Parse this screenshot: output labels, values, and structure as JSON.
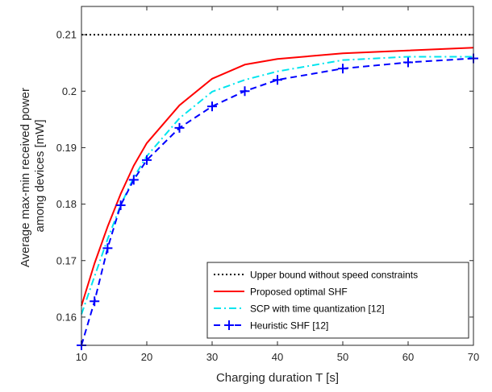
{
  "chart_data": {
    "type": "line",
    "title": "",
    "xlabel": "Charging duration T [s]",
    "ylabel_lines": [
      "Average max-min received power",
      "among devices [mW]"
    ],
    "xlim": [
      10,
      70
    ],
    "ylim": [
      0.155,
      0.215
    ],
    "xticks": [
      10,
      20,
      30,
      40,
      50,
      60,
      70
    ],
    "yticks": [
      0.16,
      0.17,
      0.18,
      0.19,
      0.2,
      0.21
    ],
    "xtick_labels": [
      "10",
      "20",
      "30",
      "40",
      "50",
      "60",
      "70"
    ],
    "ytick_labels": [
      "0.16",
      "0.17",
      "0.18",
      "0.19",
      "0.2",
      "0.21"
    ],
    "grid": false,
    "legend_position": "bottom-right",
    "series": [
      {
        "name": "Upper bound without speed constraints",
        "color": "#000000",
        "style": "dotted",
        "marker": "none",
        "x": [
          10,
          70
        ],
        "y": [
          0.21,
          0.21
        ]
      },
      {
        "name": "Proposed optimal SHF",
        "color": "#ff0000",
        "style": "solid",
        "marker": "none",
        "x": [
          10,
          12,
          14,
          16,
          18,
          20,
          25,
          30,
          35,
          40,
          50,
          60,
          70
        ],
        "y": [
          0.162,
          0.1695,
          0.176,
          0.1818,
          0.1868,
          0.1908,
          0.1975,
          0.2022,
          0.2047,
          0.2057,
          0.2067,
          0.2072,
          0.2077
        ]
      },
      {
        "name": "SCP with time quantization [12]",
        "color": "#00e5ee",
        "style": "dashdot",
        "marker": "none",
        "x": [
          10,
          12,
          14,
          16,
          18,
          20,
          25,
          30,
          35,
          40,
          50,
          60,
          70
        ],
        "y": [
          0.1605,
          0.1672,
          0.1738,
          0.1798,
          0.1847,
          0.1885,
          0.1952,
          0.1999,
          0.202,
          0.2035,
          0.2055,
          0.2061,
          0.2061
        ]
      },
      {
        "name": "Heuristic SHF [12]",
        "color": "#0000ff",
        "style": "dashed",
        "marker": "plus",
        "x": [
          10,
          12,
          14,
          16,
          18,
          20,
          25,
          30,
          35,
          40,
          50,
          60,
          70
        ],
        "y": [
          0.155,
          0.1628,
          0.1722,
          0.1798,
          0.1843,
          0.1878,
          0.1935,
          0.1973,
          0.2,
          0.202,
          0.204,
          0.2051,
          0.2058
        ]
      }
    ]
  }
}
